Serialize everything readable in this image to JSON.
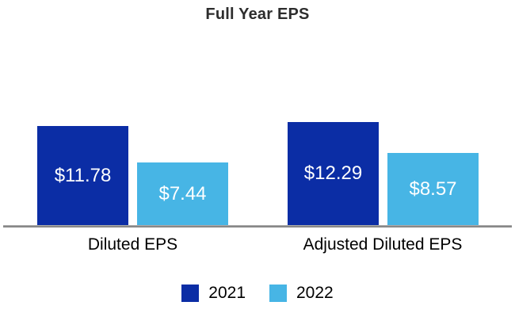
{
  "chart_data": {
    "type": "bar",
    "title": "Full Year EPS",
    "categories": [
      "Diluted EPS",
      "Adjusted Diluted EPS"
    ],
    "series": [
      {
        "name": "2021",
        "color": "#0b2da5",
        "values": [
          11.78,
          12.29
        ],
        "labels": [
          "$11.78",
          "$12.29"
        ]
      },
      {
        "name": "2022",
        "color": "#47b5e5",
        "values": [
          7.44,
          8.57
        ],
        "labels": [
          "$7.44",
          "$8.57"
        ]
      }
    ],
    "value_label_color": "#ffffff",
    "axis_line_color": "#808080",
    "legend_position": "bottom",
    "grid": false,
    "xlabel": "",
    "ylabel": "",
    "ylim": [
      0,
      13
    ]
  }
}
